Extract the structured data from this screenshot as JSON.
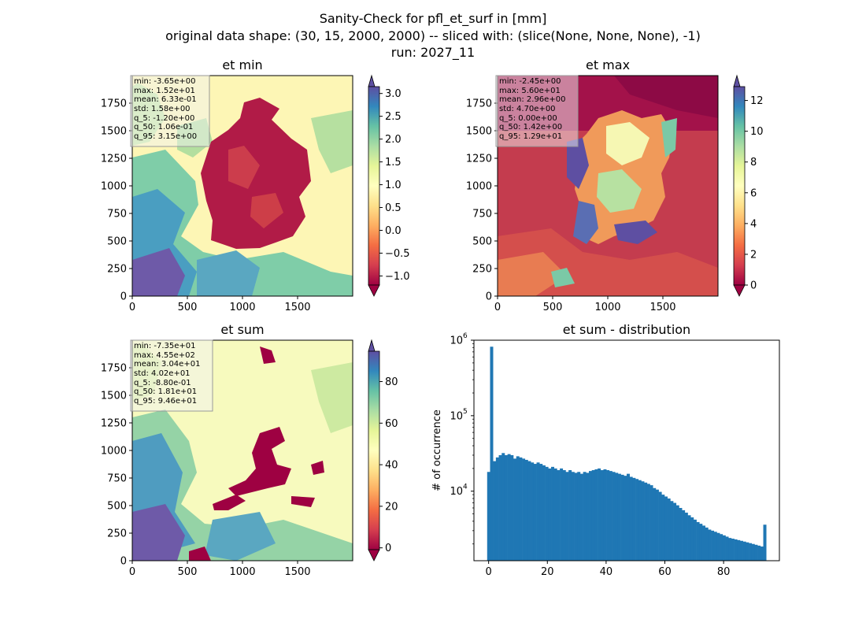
{
  "figure": {
    "title_lines": [
      "Sanity-Check for pfl_et_surf in [mm]",
      "original data shape: (30, 15, 2000, 2000) -- sliced with: (slice(None, None, None), -1)",
      "run: 2027_11"
    ]
  },
  "chart_data": [
    {
      "type": "heatmap",
      "title": "et min",
      "xlim": [
        0,
        2000
      ],
      "ylim": [
        0,
        2000
      ],
      "xticks": [
        0,
        500,
        1000,
        1500
      ],
      "yticks": [
        0,
        250,
        500,
        750,
        1000,
        1250,
        1500,
        1750
      ],
      "colormap": "Spectral",
      "colorbar": {
        "range": [
          -1.2,
          3.15
        ],
        "ticks": [
          3.0,
          2.5,
          2.0,
          1.5,
          1.0,
          0.5,
          0.0,
          -0.5,
          -1.0
        ],
        "tick_labels": [
          "3.0",
          "2.5",
          "2.0",
          "1.5",
          "1.0",
          "0.5",
          "0.0",
          "−0.5",
          "−1.0"
        ],
        "extend": "both"
      },
      "stats": [
        "min: -3.65e+00",
        "max: 1.52e+01",
        "mean: 6.33e-01",
        "std: 1.58e+00",
        "q_5: -1.20e+00",
        "q_50: 1.06e-01",
        "q_95: 3.15e+00"
      ]
    },
    {
      "type": "heatmap",
      "title": "et max",
      "xlim": [
        0,
        2000
      ],
      "ylim": [
        0,
        2000
      ],
      "xticks": [
        0,
        500,
        1000,
        1500
      ],
      "yticks": [
        0,
        250,
        500,
        750,
        1000,
        1250,
        1500,
        1750
      ],
      "colormap": "Spectral",
      "colorbar": {
        "range": [
          0,
          12.9
        ],
        "ticks": [
          12,
          10,
          8,
          6,
          4,
          2,
          0
        ],
        "tick_labels": [
          "12",
          "10",
          "8",
          "6",
          "4",
          "2",
          "0"
        ],
        "extend": "both"
      },
      "stats": [
        "min: -2.45e+00",
        "max: 5.60e+01",
        "mean: 2.96e+00",
        "std: 4.70e+00",
        "q_5: 0.00e+00",
        "q_50: 1.42e+00",
        "q_95: 1.29e+01"
      ]
    },
    {
      "type": "heatmap",
      "title": "et sum",
      "xlim": [
        0,
        2000
      ],
      "ylim": [
        0,
        2000
      ],
      "xticks": [
        0,
        500,
        1000,
        1500
      ],
      "yticks": [
        0,
        250,
        500,
        750,
        1000,
        1250,
        1500,
        1750
      ],
      "colormap": "Spectral",
      "colorbar": {
        "range": [
          -0.88,
          94.6
        ],
        "ticks": [
          80,
          60,
          40,
          20,
          0
        ],
        "tick_labels": [
          "80",
          "60",
          "40",
          "20",
          "0"
        ],
        "extend": "both"
      },
      "stats": [
        "min: -7.35e+01",
        "max: 4.55e+02",
        "mean: 3.04e+01",
        "std: 4.02e+01",
        "q_5: -8.80e-01",
        "q_50: 1.81e+01",
        "q_95: 9.46e+01"
      ]
    },
    {
      "type": "bar",
      "title": "et sum - distribution",
      "ylabel": "# of occurrence",
      "yscale": "log",
      "xlim": [
        -5,
        99
      ],
      "ylim": [
        1200,
        1000000
      ],
      "xticks": [
        0,
        20,
        40,
        60,
        80
      ],
      "ytick_labels": [
        "10",
        "10",
        "10"
      ],
      "ytick_exponents": [
        "4",
        "5",
        "6"
      ],
      "ytick_values": [
        10000,
        100000,
        1000000
      ],
      "bar_color": "#1f77b4",
      "bins": [
        -0.5,
        94.5
      ],
      "counts": [
        18000,
        820000,
        25000,
        28000,
        30000,
        32000,
        30000,
        31000,
        30000,
        27000,
        29000,
        28000,
        27000,
        26000,
        25000,
        24000,
        23000,
        24000,
        23000,
        22000,
        21000,
        20000,
        21000,
        20000,
        19000,
        20000,
        19000,
        18000,
        19000,
        18000,
        17500,
        18000,
        17000,
        18000,
        17500,
        18500,
        19000,
        19500,
        20000,
        19000,
        19500,
        19000,
        18500,
        18000,
        17500,
        17000,
        16500,
        16000,
        17000,
        15500,
        15000,
        14500,
        14000,
        13500,
        13000,
        12500,
        12000,
        11000,
        10500,
        9800,
        9000,
        8500,
        8000,
        7400,
        7000,
        6500,
        6000,
        5600,
        5200,
        4800,
        4500,
        4200,
        3900,
        3700,
        3500,
        3300,
        3100,
        3000,
        2900,
        2800,
        2700,
        2600,
        2500,
        2400,
        2350,
        2300,
        2250,
        2200,
        2150,
        2100,
        2050,
        2000,
        1950,
        1900,
        1850,
        3600
      ]
    }
  ]
}
